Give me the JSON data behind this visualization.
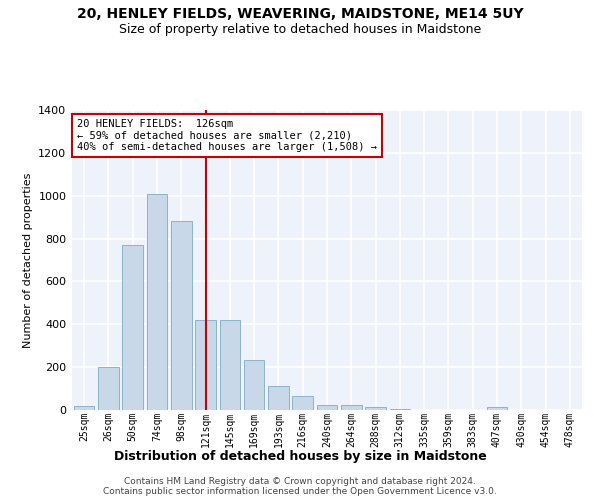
{
  "title": "20, HENLEY FIELDS, WEAVERING, MAIDSTONE, ME14 5UY",
  "subtitle": "Size of property relative to detached houses in Maidstone",
  "xlabel": "Distribution of detached houses by size in Maidstone",
  "ylabel": "Number of detached properties",
  "bar_color": "#c8d8e8",
  "bar_edge_color": "#8ab4cc",
  "background_color": "#eef2fa",
  "grid_color": "#ffffff",
  "annotation_line_color": "#cc0000",
  "annotation_box_edge": "#cc0000",
  "annotation_text": "20 HENLEY FIELDS:  126sqm\n← 59% of detached houses are smaller (2,210)\n40% of semi-detached houses are larger (1,508) →",
  "footer1": "Contains HM Land Registry data © Crown copyright and database right 2024.",
  "footer2": "Contains public sector information licensed under the Open Government Licence v3.0.",
  "categories": [
    "25sqm",
    "26sqm",
    "50sqm",
    "74sqm",
    "98sqm",
    "121sqm",
    "145sqm",
    "169sqm",
    "193sqm",
    "216sqm",
    "240sqm",
    "264sqm",
    "288sqm",
    "312sqm",
    "335sqm",
    "359sqm",
    "383sqm",
    "407sqm",
    "430sqm",
    "454sqm",
    "478sqm"
  ],
  "values": [
    20,
    200,
    770,
    1010,
    880,
    420,
    420,
    235,
    110,
    65,
    25,
    25,
    15,
    5,
    0,
    0,
    0,
    15,
    0,
    0,
    0
  ],
  "vline_x": 5,
  "ylim": [
    0,
    1400
  ],
  "yticks": [
    0,
    200,
    400,
    600,
    800,
    1000,
    1200,
    1400
  ],
  "title_fontsize": 10,
  "subtitle_fontsize": 9
}
